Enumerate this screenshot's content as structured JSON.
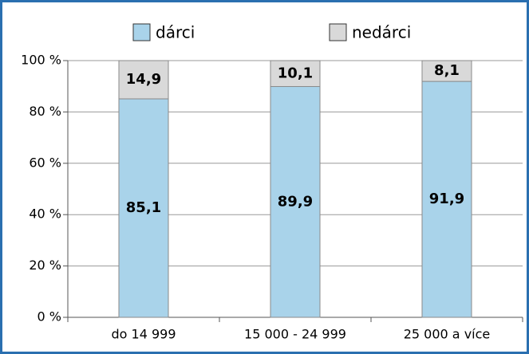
{
  "chart_data": {
    "type": "stacked_bar",
    "categories": [
      "do 14 999",
      "15 000 - 24 999",
      "25 000 a více"
    ],
    "series": [
      {
        "name": "dárci",
        "color": "#a9d3ea",
        "values": [
          85.1,
          89.9,
          91.9
        ],
        "value_labels": [
          "85,1",
          "89,9",
          "91,9"
        ]
      },
      {
        "name": "nedárci",
        "color": "#d9d9d9",
        "values": [
          14.9,
          10.1,
          8.1
        ],
        "value_labels": [
          "14,9",
          "10,1",
          "8,1"
        ]
      }
    ],
    "ylim": [
      0,
      100
    ],
    "yticks": [
      {
        "value": 0,
        "label": "0 %"
      },
      {
        "value": 20,
        "label": "20 %"
      },
      {
        "value": 40,
        "label": "40 %"
      },
      {
        "value": 60,
        "label": "60 %"
      },
      {
        "value": 80,
        "label": "80 %"
      },
      {
        "value": 100,
        "label": "100 %"
      }
    ],
    "grid": true,
    "legend": "top"
  }
}
